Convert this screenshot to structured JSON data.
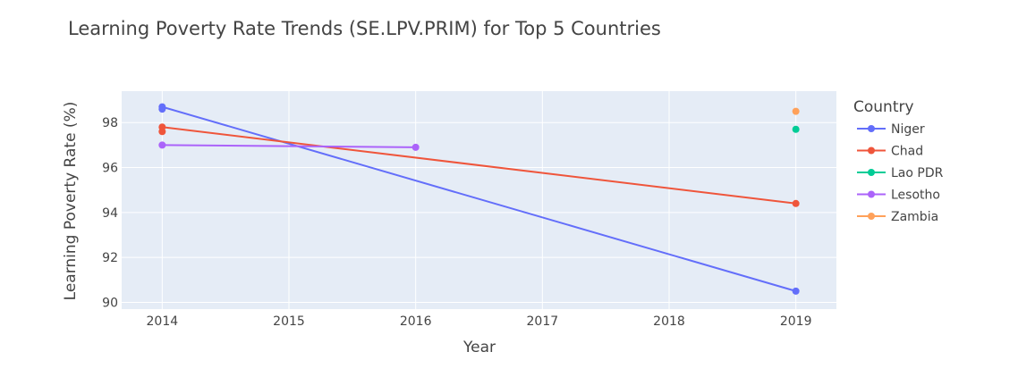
{
  "chart_data": {
    "type": "line",
    "title": "Learning Poverty Rate Trends (SE.LPV.PRIM) for Top 5 Countries",
    "xlabel": "Year",
    "ylabel": "Learning Poverty Rate (%)",
    "xlim": [
      2013.68,
      2019.32
    ],
    "ylim": [
      89.7,
      99.4
    ],
    "x_ticks": [
      "2014",
      "2015",
      "2016",
      "2017",
      "2018",
      "2019"
    ],
    "y_ticks": [
      "90",
      "92",
      "94",
      "96",
      "98"
    ],
    "grid": true,
    "legend_title": "Country",
    "legend_position": "right",
    "series": [
      {
        "name": "Niger",
        "color": "#636efa",
        "points": [
          [
            2014,
            98.6
          ],
          [
            2014,
            98.7
          ],
          [
            2019,
            90.5
          ]
        ]
      },
      {
        "name": "Chad",
        "color": "#ef553b",
        "points": [
          [
            2014,
            97.6
          ],
          [
            2014,
            97.8
          ],
          [
            2019,
            94.4
          ]
        ]
      },
      {
        "name": "Lao PDR",
        "color": "#00cc96",
        "points": [
          [
            2019,
            97.7
          ]
        ]
      },
      {
        "name": "Lesotho",
        "color": "#ab63fa",
        "points": [
          [
            2014,
            97.0
          ],
          [
            2016,
            96.9
          ]
        ]
      },
      {
        "name": "Zambia",
        "color": "#ffa15a",
        "points": [
          [
            2019,
            98.5
          ]
        ]
      }
    ]
  }
}
